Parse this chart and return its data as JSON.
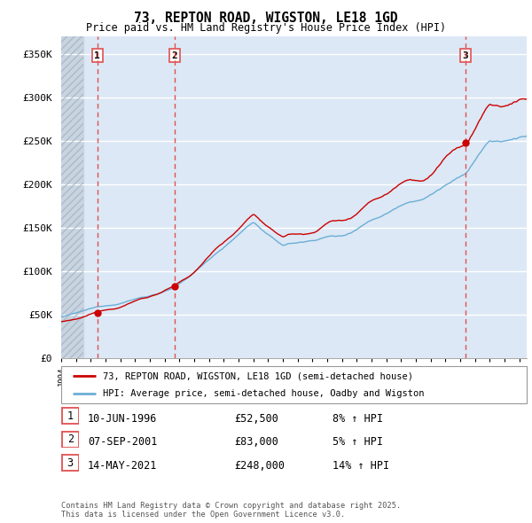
{
  "title": "73, REPTON ROAD, WIGSTON, LE18 1GD",
  "subtitle": "Price paid vs. HM Land Registry's House Price Index (HPI)",
  "xlim": [
    1994.0,
    2025.5
  ],
  "ylim": [
    0,
    370000
  ],
  "yticks": [
    0,
    50000,
    100000,
    150000,
    200000,
    250000,
    300000,
    350000
  ],
  "ytick_labels": [
    "£0",
    "£50K",
    "£100K",
    "£150K",
    "£200K",
    "£250K",
    "£300K",
    "£350K"
  ],
  "sale_dates": [
    1996.44,
    2001.68,
    2021.37
  ],
  "sale_prices": [
    52500,
    83000,
    248000
  ],
  "sale_labels": [
    "1",
    "2",
    "3"
  ],
  "hpi_color": "#6baed6",
  "price_color": "#cc0000",
  "vline_color": "#e05050",
  "background_color": "#dce8f5",
  "hatch_bg_color": "#c8d4e0",
  "legend_entries": [
    "73, REPTON ROAD, WIGSTON, LE18 1GD (semi-detached house)",
    "HPI: Average price, semi-detached house, Oadby and Wigston"
  ],
  "table_data": [
    [
      "1",
      "10-JUN-1996",
      "£52,500",
      "8% ↑ HPI"
    ],
    [
      "2",
      "07-SEP-2001",
      "£83,000",
      "5% ↑ HPI"
    ],
    [
      "3",
      "14-MAY-2021",
      "£248,000",
      "14% ↑ HPI"
    ]
  ],
  "footnote": "Contains HM Land Registry data © Crown copyright and database right 2025.\nThis data is licensed under the Open Government Licence v3.0."
}
